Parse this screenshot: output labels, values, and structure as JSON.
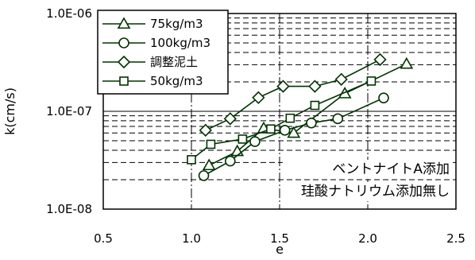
{
  "chart_data": {
    "type": "line",
    "xlabel": "e",
    "ylabel": "k(cm/s)",
    "xlim": [
      0.5,
      2.5
    ],
    "ylim": [
      1e-08,
      1e-06
    ],
    "y_scale": "log",
    "grid": true,
    "legend_position": "top-left",
    "x_ticks": [
      "0.5",
      "1.0",
      "1.5",
      "2.0",
      "2.5"
    ],
    "y_ticks": [
      "1.0E-06",
      "1.0E-07",
      "1.0E-08"
    ],
    "series": [
      {
        "name": "75kg/m3",
        "marker": "triangle",
        "x": [
          1.1,
          1.26,
          1.41,
          1.58,
          1.87,
          2.22
        ],
        "y": [
          2.8e-08,
          3.9e-08,
          6.7e-08,
          6e-08,
          1.52e-07,
          3.05e-07
        ]
      },
      {
        "name": "100kg/m3",
        "marker": "circle",
        "x": [
          1.07,
          1.22,
          1.36,
          1.53,
          1.68,
          1.83,
          2.09
        ],
        "y": [
          2.2e-08,
          3.1e-08,
          4.9e-08,
          6.4e-08,
          7.6e-08,
          8.4e-08,
          1.37e-07
        ]
      },
      {
        "name": "調整泥土",
        "marker": "diamond",
        "x": [
          1.08,
          1.22,
          1.38,
          1.52,
          1.7,
          1.85,
          2.07
        ],
        "y": [
          6.4e-08,
          8.4e-08,
          1.38e-07,
          1.8e-07,
          1.8e-07,
          2.12e-07,
          3.38e-07
        ]
      },
      {
        "name": "50kg/m3",
        "marker": "square",
        "x": [
          1.0,
          1.11,
          1.29,
          1.45,
          1.56,
          1.7,
          2.02
        ],
        "y": [
          3.2e-08,
          4.6e-08,
          5.2e-08,
          6.6e-08,
          8.5e-08,
          1.15e-07,
          2.04e-07
        ]
      }
    ],
    "annotations": [
      "ベントナイトA添加",
      "珪酸ナトリウム添加無し"
    ]
  },
  "colors": {
    "line": "#003300",
    "grid": "#000000",
    "axis": "#000000"
  }
}
